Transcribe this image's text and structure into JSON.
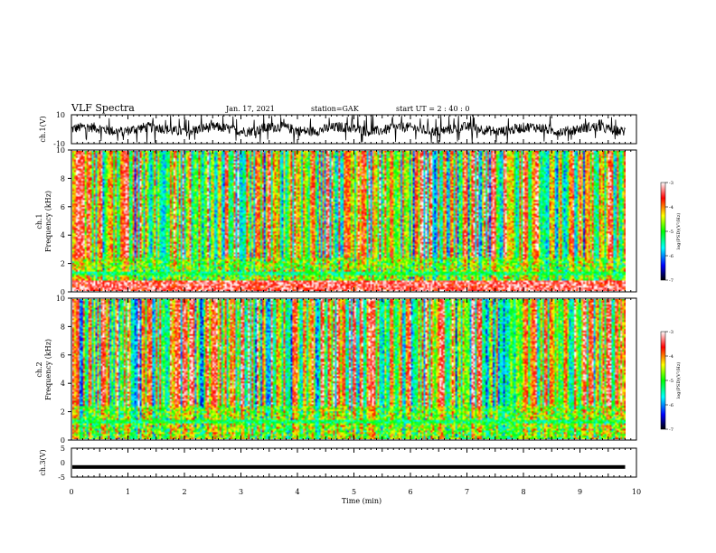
{
  "header": {
    "title": "VLF Spectra",
    "date": "Jan. 17, 2021",
    "station": "station=GAK",
    "start": "start  UT =  2 : 40 : 0"
  },
  "chart_data": [
    {
      "type": "line",
      "panel": "ch1-waveform",
      "ylabel": "ch.1(V)",
      "ylim": [
        -10,
        10
      ],
      "yticks": [
        "10",
        "-10"
      ],
      "xlim": [
        0,
        10
      ],
      "data_extent_min": 9.8,
      "trace_color": "#000000"
    },
    {
      "type": "heatmap",
      "panel": "ch1-spectrogram",
      "ylabel": "ch.1\nFrequency (kHz)",
      "ylabel_line1": "ch.1",
      "ylabel_line2": "Frequency (kHz)",
      "ylim": [
        0,
        10
      ],
      "yticks": [
        "0",
        "2",
        "4",
        "6",
        "8",
        "10"
      ],
      "xlim": [
        0,
        10
      ],
      "data_extent_min": 9.8,
      "colorbar": {
        "label": "log(PSD)(V²/Hz)",
        "range": [
          -7,
          -3
        ],
        "ticks": [
          "-3",
          "-4",
          "-5",
          "-6",
          "-7"
        ],
        "colors": [
          "#000000",
          "#0000ff",
          "#00ffff",
          "#00ff00",
          "#ffff00",
          "#ff0000",
          "#ffffff"
        ]
      }
    },
    {
      "type": "heatmap",
      "panel": "ch2-spectrogram",
      "ylabel": "ch.2\nFrequency (kHz)",
      "ylabel_line1": "ch.2",
      "ylabel_line2": "Frequency (kHz)",
      "ylim": [
        0,
        10
      ],
      "yticks": [
        "0",
        "2",
        "4",
        "6",
        "8",
        "10"
      ],
      "xlim": [
        0,
        10
      ],
      "data_extent_min": 9.8,
      "colorbar": {
        "label": "log(PSD)(V²/Hz)",
        "range": [
          -7,
          -3
        ],
        "ticks": [
          "-3",
          "-4",
          "-5",
          "-6",
          "-7"
        ],
        "colors": [
          "#000000",
          "#0000ff",
          "#00ffff",
          "#00ff00",
          "#ffff00",
          "#ff0000",
          "#ffffff"
        ]
      }
    },
    {
      "type": "line",
      "panel": "ch3-waveform",
      "ylabel": "ch.3(V)",
      "ylim": [
        -5,
        5
      ],
      "yticks": [
        "5",
        "0",
        "-5"
      ],
      "xlim": [
        0,
        10
      ],
      "data_extent_min": 9.8,
      "values_constant": -1.5,
      "trace_color": "#000000"
    }
  ],
  "xaxis": {
    "label": "Time (min)",
    "ticks": [
      "0",
      "1",
      "2",
      "3",
      "4",
      "5",
      "6",
      "7",
      "8",
      "9",
      "10"
    ]
  }
}
